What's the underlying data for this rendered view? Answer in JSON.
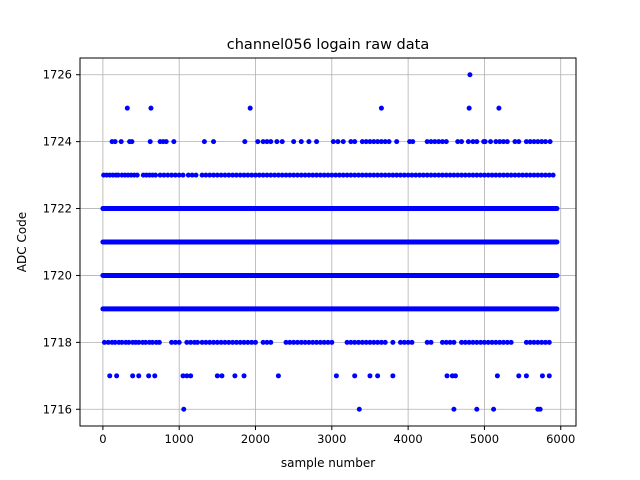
{
  "chart_data": {
    "type": "scatter",
    "title": "channel056 logain raw data",
    "xlabel": "sample number",
    "ylabel": "ADC Code",
    "xlim": [
      -300,
      6200
    ],
    "ylim": [
      1715.5,
      1726.5
    ],
    "xticks": [
      0,
      1000,
      2000,
      3000,
      4000,
      5000,
      6000
    ],
    "yticks": [
      1716,
      1718,
      1720,
      1722,
      1724,
      1726
    ],
    "grid": true,
    "marker_color": "#0000ff",
    "sample_range": [
      0,
      5950
    ],
    "series": [
      {
        "values_by_level": {
          "1716": [
            1060,
            3360,
            4600,
            4900,
            5120,
            5700,
            5730
          ],
          "1717": [
            90,
            180,
            390,
            470,
            600,
            680,
            1050,
            1100,
            1150,
            1500,
            1560,
            1730,
            1850,
            2300,
            3060,
            3300,
            3500,
            3600,
            3800,
            4510,
            4580,
            4620,
            5170,
            5450,
            5550,
            5760,
            5850
          ],
          "1718": [
            20,
            70,
            120,
            160,
            210,
            250,
            300,
            340,
            390,
            430,
            470,
            520,
            560,
            610,
            650,
            700,
            740,
            900,
            950,
            1000,
            1100,
            1150,
            1200,
            1240,
            1300,
            1350,
            1400,
            1450,
            1500,
            1550,
            1600,
            1650,
            1700,
            1750,
            1800,
            1850,
            1900,
            1950,
            2000,
            2100,
            2150,
            2200,
            2400,
            2450,
            2500,
            2550,
            2600,
            2650,
            2700,
            2750,
            2800,
            2850,
            2900,
            2950,
            3000,
            3200,
            3250,
            3300,
            3350,
            3400,
            3450,
            3500,
            3550,
            3600,
            3650,
            3700,
            3800,
            3900,
            3950,
            4000,
            4050,
            4250,
            4300,
            4450,
            4500,
            4550,
            4600,
            4700,
            4750,
            4800,
            4850,
            4900,
            4950,
            5000,
            5050,
            5100,
            5150,
            5200,
            5250,
            5300,
            5350,
            5550,
            5600,
            5650,
            5700,
            5750,
            5800,
            5850
          ],
          "1719": [
            0,
            5950
          ],
          "1720": [
            0,
            5950
          ],
          "1721": [
            0,
            5950
          ],
          "1722": [
            0,
            5950
          ],
          "1723": [
            10,
            50,
            90,
            130,
            170,
            200,
            250,
            290,
            330,
            370,
            410,
            450,
            530,
            570,
            610,
            650,
            690,
            750,
            800,
            850,
            900,
            950,
            1000,
            1050,
            1120,
            1170,
            1220,
            1300,
            1350,
            1400,
            1450,
            1500,
            1550,
            1600,
            1650,
            1700,
            1750,
            1800,
            1850,
            1900,
            1950,
            2000,
            2050,
            2100,
            2150,
            2200,
            2250,
            2300,
            2350,
            2400,
            2450,
            2500,
            2550,
            2600,
            2650,
            2700,
            2750,
            2800,
            2850,
            2900,
            2950,
            3000,
            3050,
            3100,
            3150,
            3200,
            3250,
            3300,
            3350,
            3400,
            3450,
            3500,
            3550,
            3600,
            3650,
            3700,
            3750,
            3800,
            3850,
            3900,
            3950,
            4000,
            4050,
            4100,
            4150,
            4200,
            4250,
            4300,
            4350,
            4400,
            4450,
            4500,
            4550,
            4600,
            4650,
            4700,
            4750,
            4800,
            4850,
            4900,
            4950,
            5000,
            5050,
            5100,
            5150,
            5200,
            5250,
            5300,
            5350,
            5400,
            5450,
            5500,
            5550,
            5600,
            5650,
            5700,
            5750,
            5800,
            5850,
            5900
          ],
          "1724": [
            120,
            160,
            240,
            350,
            380,
            620,
            750,
            790,
            830,
            930,
            1330,
            1450,
            1860,
            2030,
            2100,
            2150,
            2200,
            2280,
            2350,
            2500,
            2600,
            2700,
            2800,
            3020,
            3080,
            3150,
            3250,
            3300,
            3400,
            3450,
            3500,
            3550,
            3600,
            3650,
            3700,
            3750,
            3850,
            4020,
            4060,
            4250,
            4300,
            4350,
            4400,
            4450,
            4500,
            4650,
            4700,
            4790,
            4850,
            4900,
            4990,
            5010,
            5080,
            5150,
            5200,
            5250,
            5300,
            5400,
            5450,
            5550,
            5600,
            5650,
            5700,
            5750,
            5800,
            5860
          ],
          "1725": [
            320,
            630,
            1930,
            3650,
            4800,
            5190
          ],
          "1726": [
            4810
          ]
        },
        "dense_levels": [
          "1719",
          "1720",
          "1721",
          "1722"
        ]
      }
    ]
  }
}
